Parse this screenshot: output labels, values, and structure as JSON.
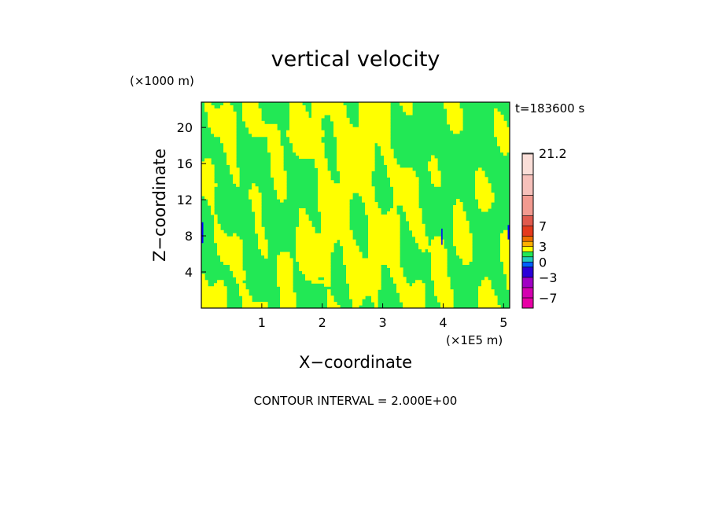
{
  "chart_data": {
    "type": "heatmap",
    "title": "vertical velocity",
    "xlabel": "X−coordinate",
    "ylabel": "Z−coordinate",
    "x_unit": "(×1E5 m)",
    "y_unit": "(×1000 m)",
    "time_label": "t=183600 s",
    "xlim": [
      0,
      5.1
    ],
    "ylim": [
      0,
      22.8
    ],
    "x_ticks": [
      {
        "value": 1,
        "label": "1"
      },
      {
        "value": 2,
        "label": "2"
      },
      {
        "value": 3,
        "label": "3"
      },
      {
        "value": 4,
        "label": "4"
      },
      {
        "value": 5,
        "label": "5"
      }
    ],
    "y_ticks": [
      {
        "value": 4,
        "label": "4"
      },
      {
        "value": 8,
        "label": "8"
      },
      {
        "value": 12,
        "label": "12"
      },
      {
        "value": 16,
        "label": "16"
      },
      {
        "value": 20,
        "label": "20"
      }
    ],
    "colorbar": {
      "levels": [
        {
          "value": -9,
          "color": "#e800a6"
        },
        {
          "value": -7,
          "color": "#d400b0"
        },
        {
          "value": -5,
          "color": "#a000c4"
        },
        {
          "value": -3,
          "color": "#2a00d8"
        },
        {
          "value": -1,
          "color": "#0060ff"
        },
        {
          "value": 0,
          "color": "#22ccbb"
        },
        {
          "value": 1,
          "color": "#22e855"
        },
        {
          "value": 2,
          "color": "#ffff00"
        },
        {
          "value": 3,
          "color": "#ffb000"
        },
        {
          "value": 4,
          "color": "#ee7000"
        },
        {
          "value": 5,
          "color": "#e43a1e"
        },
        {
          "value": 7,
          "color": "#e05a4e"
        },
        {
          "value": 9,
          "color": "#f29a90"
        },
        {
          "value": 13,
          "color": "#f6c0ba"
        },
        {
          "value": 17,
          "color": "#faded8"
        },
        {
          "value": 21.2,
          "color": "#ffffff"
        }
      ],
      "labels": [
        "21.2",
        "7",
        "3",
        "0",
        "−3",
        "−7"
      ]
    },
    "field_colors": {
      "upward": "#ffff00",
      "downward": "#22e855",
      "strong_down": "#0000ff"
    },
    "contour_interval": "CONTOUR INTERVAL = 2.000E+00"
  }
}
